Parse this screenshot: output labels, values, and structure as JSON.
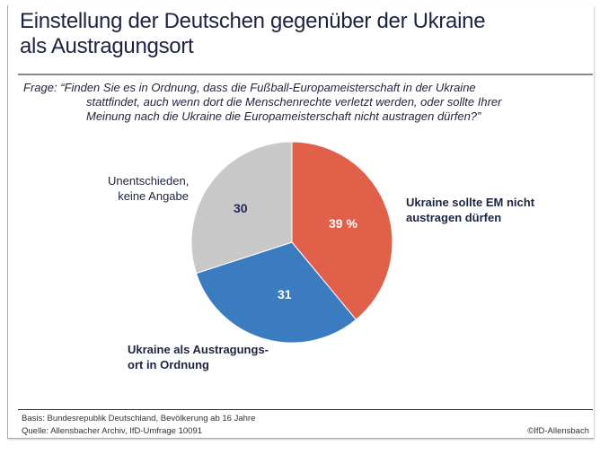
{
  "title_lines": [
    "Einstellung der Deutschen gegenüber der Ukraine",
    "als Austragungsort"
  ],
  "question": {
    "prefix": "Frage:",
    "lines": [
      "“Finden Sie es in Ordnung, dass die Fußball-Europameisterschaft in der Ukraine",
      "stattfindet, auch wenn dort die Menschenrechte verletzt werden, oder sollte Ihrer",
      "Meinung nach die Ukraine die Europameisterschaft nicht austragen dürfen?”"
    ]
  },
  "chart_data": {
    "type": "pie",
    "slices": [
      {
        "label_lines": [
          "Ukraine sollte EM nicht",
          "austragen dürfen"
        ],
        "value": 39,
        "value_label": "39 %",
        "color": "#e0604a"
      },
      {
        "label_lines": [
          "Ukraine als Austragungs-",
          "ort in Ordnung"
        ],
        "value": 31,
        "value_label": "31",
        "color": "#3b7cc0"
      },
      {
        "label_lines": [
          "Unentschieden,",
          "keine Angabe"
        ],
        "value": 30,
        "value_label": "30",
        "color": "#c8c8c8"
      }
    ],
    "start": "top",
    "direction": "clockwise"
  },
  "footer": {
    "basis": "Basis: Bundesrepublik Deutschland, Bevölkerung ab 16 Jahre",
    "source": "Quelle: Allensbacher Archiv, IfD-Umfrage 10091",
    "copyright": "©IfD-Allensbach"
  }
}
